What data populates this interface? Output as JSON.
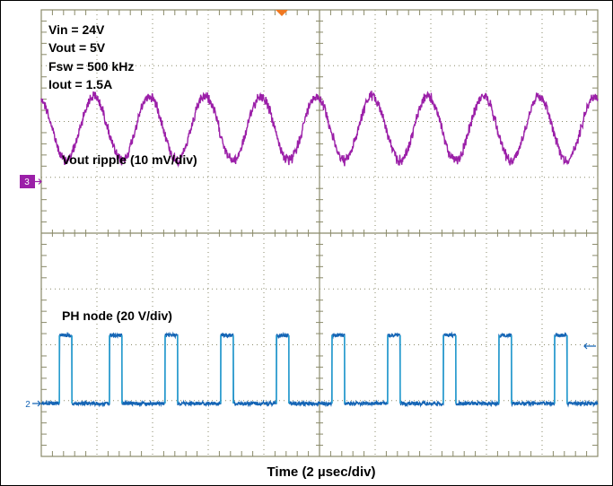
{
  "chart_data": {
    "type": "line",
    "title": "",
    "xlabel": "Time (2 µsec/div)",
    "x_divisions": 10,
    "y_divisions": 8,
    "xlim_us": [
      0,
      20
    ],
    "annotations": [
      "Vin = 24V",
      "Vout = 5V",
      "Fsw = 500 kHz",
      "Iout = 1.5A"
    ],
    "channel_markers": {
      "ch3": "3",
      "ch2": "2"
    },
    "colors": {
      "ch3": "#9b1fa8",
      "ch2": "#1565b5",
      "grid": "#8a8a6a",
      "trigger": "#f07820"
    },
    "series": [
      {
        "name": "Vout ripple (10 mV/div)",
        "channel": 3,
        "scale": "10 mV/div",
        "ripple_mvpp": 14,
        "period_us": 2.0,
        "offset_div": 1.85
      },
      {
        "name": "PH node (20 V/div)",
        "channel": 2,
        "scale": "20 V/div",
        "period_us": 2.0,
        "on_time_us": 0.45,
        "low_v": 0,
        "high_v": 24,
        "rising_edges_us": [
          0.65,
          2.45,
          4.45,
          6.45,
          8.45,
          10.45,
          12.45,
          14.45,
          16.45,
          18.45
        ]
      }
    ]
  }
}
